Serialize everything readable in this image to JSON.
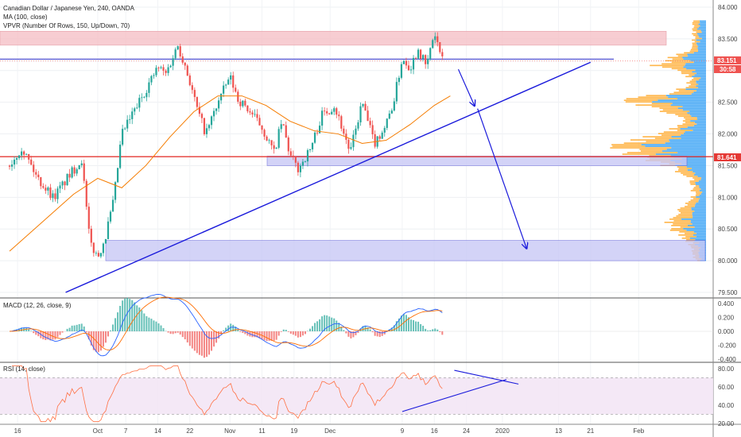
{
  "header": {
    "title": "Canadian Dollar / Japanese Yen, 240, OANDA",
    "ma_label": "MA (100, close)",
    "vpvr_label": "VPVR (Number Of Rows, 150, Up/Down, 70)"
  },
  "macd": {
    "label": "MACD (12, 26, close, 9)"
  },
  "rsi": {
    "label": "RSI (14, close)"
  },
  "price_badges": {
    "last_price": "83.151",
    "countdown": "30:58",
    "level": "81.641"
  },
  "colors": {
    "up": "#26a69a",
    "down": "#ef5350",
    "ma": "#f57c00",
    "trend": "#1a1adb",
    "resistance": "#f6c1c7",
    "support": "#c9c9f6",
    "level": "#e53935",
    "vp_up": "#2196f3",
    "vp_down": "#ffa726",
    "rsi_band": "#f3e5f5",
    "rsi_line": "#ff7043"
  },
  "chart_data": [
    {
      "type": "candlestick",
      "title": "Canadian Dollar / Japanese Yen, 240, OANDA",
      "ylim": [
        79.5,
        84.0
      ],
      "yticks": [
        84.0,
        83.5,
        83.0,
        82.5,
        82.0,
        81.5,
        81.0,
        80.5,
        80.0,
        79.5
      ],
      "ytick_labels": [
        "84.000",
        "83.500",
        "83.000",
        "82.500",
        "82.000",
        "81.500",
        "81.000",
        "80.500",
        "80.000",
        "79.500"
      ],
      "x_labels": [
        "16",
        "Oct",
        "7",
        "14",
        "22",
        "Nov",
        "11",
        "19",
        "Dec",
        "9",
        "16",
        "24",
        "2020",
        "13",
        "21",
        "Feb"
      ],
      "close_path": [
        {
          "d": 0,
          "v": 81.5
        },
        {
          "d": 3,
          "v": 81.8
        },
        {
          "d": 7,
          "v": 81.3
        },
        {
          "d": 11,
          "v": 81.0
        },
        {
          "d": 15,
          "v": 81.35
        },
        {
          "d": 18,
          "v": 81.6
        },
        {
          "d": 20,
          "v": 80.3
        },
        {
          "d": 22,
          "v": 80.05
        },
        {
          "d": 24,
          "v": 80.4
        },
        {
          "d": 26,
          "v": 80.95
        },
        {
          "d": 28,
          "v": 82.0
        },
        {
          "d": 31,
          "v": 82.35
        },
        {
          "d": 34,
          "v": 82.7
        },
        {
          "d": 37,
          "v": 83.05
        },
        {
          "d": 39,
          "v": 82.95
        },
        {
          "d": 42,
          "v": 83.4
        },
        {
          "d": 44,
          "v": 83.05
        },
        {
          "d": 47,
          "v": 82.35
        },
        {
          "d": 49,
          "v": 82.0
        },
        {
          "d": 52,
          "v": 82.5
        },
        {
          "d": 55,
          "v": 82.9
        },
        {
          "d": 57,
          "v": 82.55
        },
        {
          "d": 60,
          "v": 82.35
        },
        {
          "d": 63,
          "v": 82.1
        },
        {
          "d": 66,
          "v": 81.7
        },
        {
          "d": 68,
          "v": 82.2
        },
        {
          "d": 70,
          "v": 81.65
        },
        {
          "d": 72,
          "v": 81.45
        },
        {
          "d": 75,
          "v": 81.75
        },
        {
          "d": 78,
          "v": 82.3
        },
        {
          "d": 81,
          "v": 82.45
        },
        {
          "d": 83,
          "v": 82.1
        },
        {
          "d": 85,
          "v": 81.7
        },
        {
          "d": 88,
          "v": 82.5
        },
        {
          "d": 91,
          "v": 81.85
        },
        {
          "d": 94,
          "v": 82.15
        },
        {
          "d": 96,
          "v": 82.55
        },
        {
          "d": 98,
          "v": 83.2
        },
        {
          "d": 100,
          "v": 83.05
        },
        {
          "d": 102,
          "v": 83.35
        },
        {
          "d": 104,
          "v": 83.05
        },
        {
          "d": 106,
          "v": 83.6
        },
        {
          "d": 108,
          "v": 83.15
        }
      ],
      "ma_100": [
        {
          "d": 0,
          "v": 80.15
        },
        {
          "d": 8,
          "v": 80.6
        },
        {
          "d": 16,
          "v": 81.05
        },
        {
          "d": 22,
          "v": 81.3
        },
        {
          "d": 28,
          "v": 81.15
        },
        {
          "d": 34,
          "v": 81.5
        },
        {
          "d": 40,
          "v": 81.95
        },
        {
          "d": 46,
          "v": 82.35
        },
        {
          "d": 52,
          "v": 82.6
        },
        {
          "d": 58,
          "v": 82.6
        },
        {
          "d": 64,
          "v": 82.45
        },
        {
          "d": 70,
          "v": 82.2
        },
        {
          "d": 76,
          "v": 82.05
        },
        {
          "d": 82,
          "v": 82.0
        },
        {
          "d": 88,
          "v": 81.85
        },
        {
          "d": 94,
          "v": 81.9
        },
        {
          "d": 100,
          "v": 82.15
        },
        {
          "d": 106,
          "v": 82.45
        },
        {
          "d": 110,
          "v": 82.6
        }
      ],
      "zones": [
        {
          "name": "resistance",
          "from": 83.4,
          "to": 83.62
        },
        {
          "name": "support-mid",
          "from": 81.5,
          "to": 81.65
        },
        {
          "name": "support-low",
          "from": 80.0,
          "to": 80.32
        }
      ],
      "levels": [
        83.18,
        83.15,
        81.641
      ],
      "trendline": [
        {
          "d": 14,
          "v": 79.5
        },
        {
          "d": 145,
          "v": 83.13
        }
      ],
      "projection": [
        {
          "d": 112,
          "v": 83.02
        },
        {
          "d": 116,
          "v": 82.45
        },
        {
          "d": 129,
          "v": 80.2
        }
      ]
    },
    {
      "type": "line",
      "title": "MACD (12, 26, close, 9)",
      "ylim": [
        -0.4,
        0.4
      ],
      "ytick_labels": [
        "0.400",
        "0.200",
        "0.000",
        "-0.200",
        "-0.400"
      ]
    },
    {
      "type": "line",
      "title": "RSI (14, close)",
      "ylim": [
        20,
        85
      ],
      "bands": [
        70,
        30
      ],
      "ytick_labels": [
        "80.00",
        "60.00",
        "40.00",
        "20.00"
      ]
    }
  ]
}
